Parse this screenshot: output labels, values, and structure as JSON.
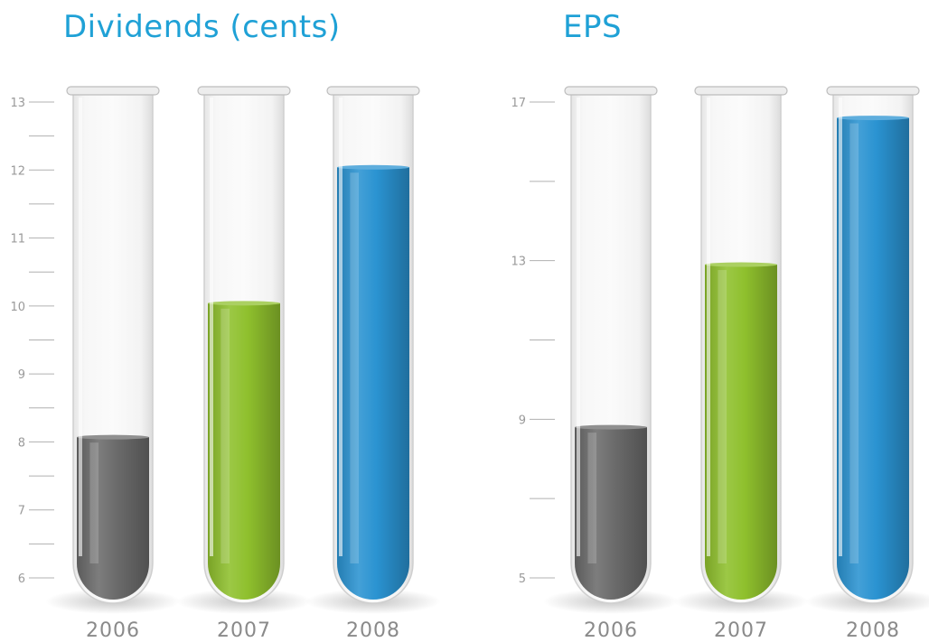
{
  "chart_data": [
    {
      "type": "bar",
      "title": "Dividends (cents)",
      "categories": [
        "2006",
        "2007",
        "2008"
      ],
      "values": [
        8.07,
        10.04,
        12.04
      ],
      "ylim": [
        6,
        13
      ],
      "yticks": [
        "6",
        "7",
        "8",
        "9",
        "10",
        "11",
        "12",
        "13"
      ],
      "colors": [
        "#6b6b6b",
        "#8fc02d",
        "#2a93d1"
      ]
    },
    {
      "type": "bar",
      "title": "EPS",
      "categories": [
        "2006",
        "2007",
        "2008"
      ],
      "values": [
        8.8,
        12.9,
        16.6
      ],
      "ylim": [
        5,
        17
      ],
      "yticks": [
        "5",
        "9",
        "13",
        "17"
      ],
      "colors": [
        "#6b6b6b",
        "#8fc02d",
        "#2a93d1"
      ]
    }
  ]
}
